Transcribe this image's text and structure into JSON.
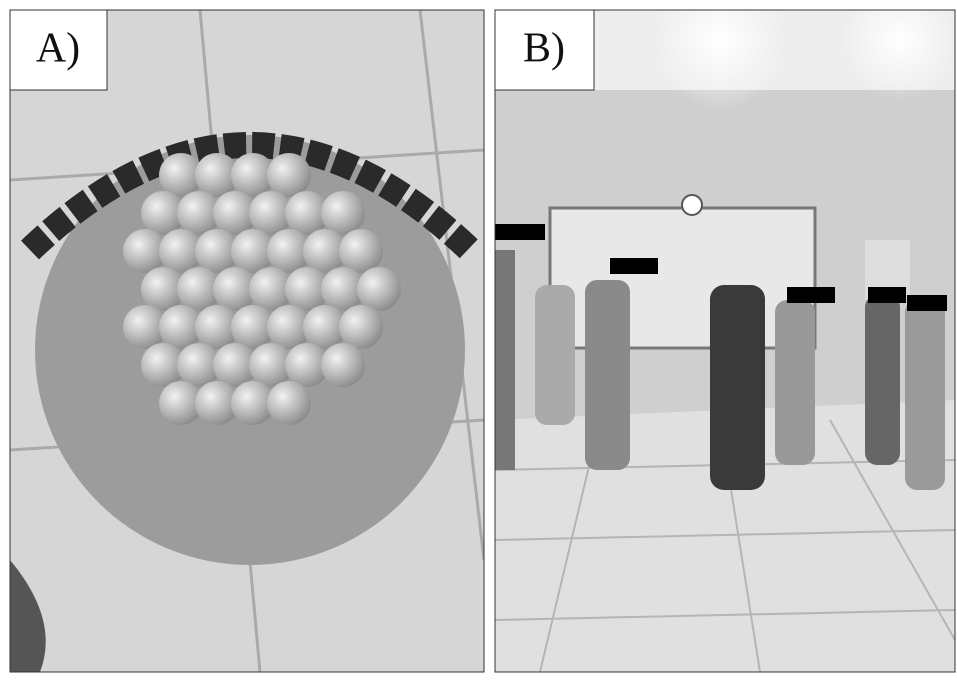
{
  "panels": [
    {
      "label": "A)"
    },
    {
      "label": "B)"
    }
  ]
}
